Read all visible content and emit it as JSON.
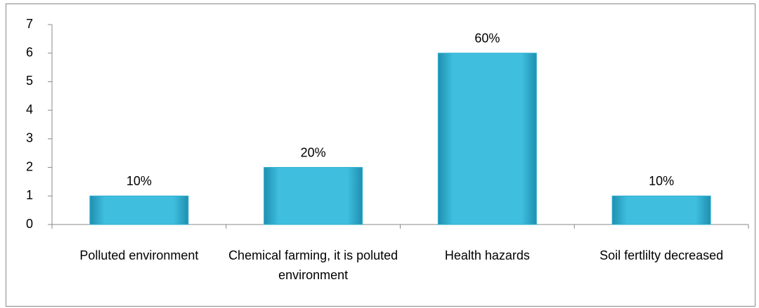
{
  "chart_data": {
    "type": "bar",
    "categories": [
      "Polluted environment",
      "Chemical farming, it is poluted environment",
      "Health hazards",
      "Soil fertlilty decreased"
    ],
    "values": [
      1,
      2,
      6,
      1
    ],
    "value_labels": [
      "10%",
      "20%",
      "60%",
      "10%"
    ],
    "color": "#31b0d2",
    "ylim": [
      0,
      7
    ],
    "yticks": [
      0,
      1,
      2,
      3,
      4,
      5,
      6,
      7
    ],
    "grid": false
  }
}
